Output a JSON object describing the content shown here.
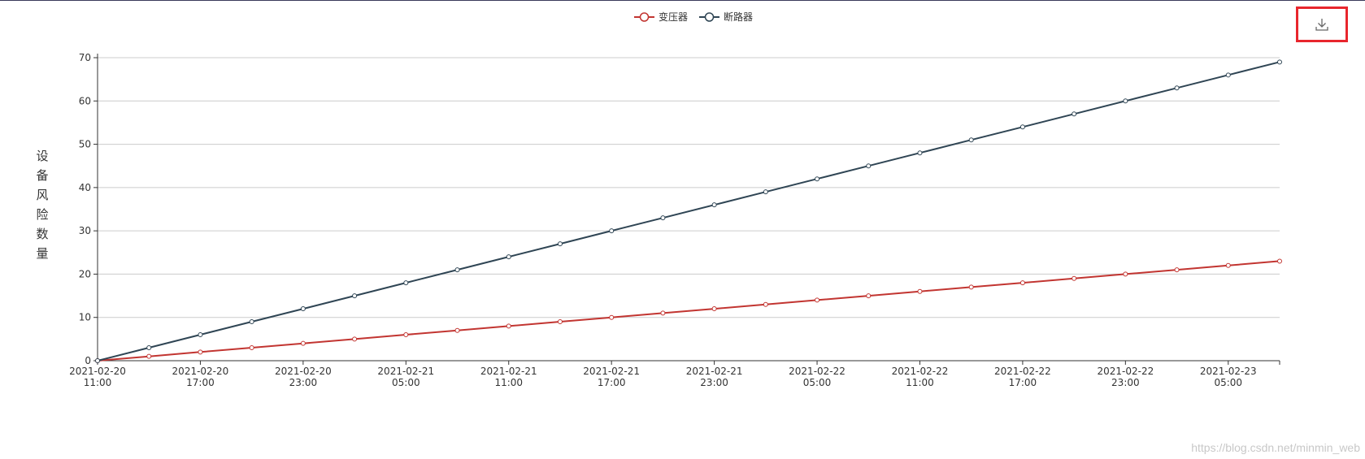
{
  "legend": {
    "items": [
      {
        "label": "变压器",
        "color": "#c23531"
      },
      {
        "label": "断路器",
        "color": "#2f4554"
      }
    ]
  },
  "toolbox": {
    "download_icon": "download-icon"
  },
  "y_axis_title": "设备风险数量",
  "watermark": "https://blog.csdn.net/minmin_web",
  "chart_data": {
    "type": "line",
    "ylabel": "设备风险数量",
    "ylim": [
      0,
      70
    ],
    "yticks": [
      0,
      10,
      20,
      30,
      40,
      50,
      60,
      70
    ],
    "grid": true,
    "legend_position": "top-center",
    "x_labels": [
      [
        "2021-02-20",
        "11:00"
      ],
      [
        "2021-02-20",
        "17:00"
      ],
      [
        "2021-02-20",
        "23:00"
      ],
      [
        "2021-02-21",
        "05:00"
      ],
      [
        "2021-02-21",
        "11:00"
      ],
      [
        "2021-02-21",
        "17:00"
      ],
      [
        "2021-02-21",
        "23:00"
      ],
      [
        "2021-02-22",
        "05:00"
      ],
      [
        "2021-02-22",
        "11:00"
      ],
      [
        "2021-02-22",
        "17:00"
      ],
      [
        "2021-02-22",
        "23:00"
      ],
      [
        "2021-02-23",
        "05:00"
      ]
    ],
    "x_interval_hours": 3,
    "series": [
      {
        "name": "变压器",
        "color": "#c23531",
        "values": [
          0,
          1,
          2,
          3,
          4,
          5,
          6,
          7,
          8,
          9,
          10,
          11,
          12,
          13,
          14,
          15,
          16,
          17,
          18,
          19,
          20,
          21,
          22,
          23
        ]
      },
      {
        "name": "断路器",
        "color": "#2f4554",
        "values": [
          0,
          3,
          6,
          9,
          12,
          15,
          18,
          21,
          24,
          27,
          30,
          33,
          36,
          39,
          42,
          45,
          48,
          51,
          54,
          57,
          60,
          63,
          66,
          69
        ]
      }
    ]
  }
}
